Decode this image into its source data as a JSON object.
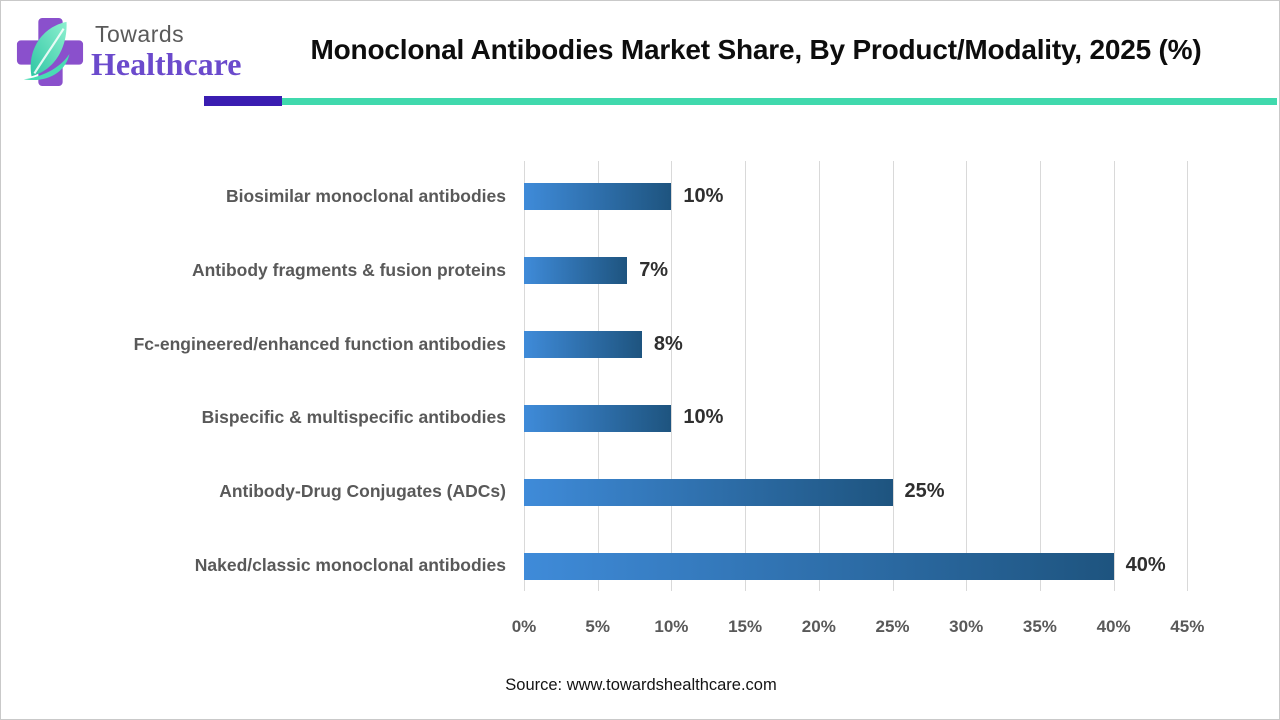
{
  "header": {
    "logo_top": "Towards",
    "logo_bottom": "Healthcare",
    "title": "Monoclonal Antibodies Market Share, By Product/Modality, 2025 (%)"
  },
  "colors": {
    "divider_purple": "#3a1db1",
    "divider_teal": "#40d9ad",
    "bar_gradient_start": "#3f8bd9",
    "bar_gradient_end": "#1e547f",
    "gridline": "#d9d9d9",
    "category_label": "#595959",
    "value_label": "#2f2f2f",
    "axis_label": "#595959",
    "logo_purple": "#8a50cc",
    "logo_teal": "#2fd0a8"
  },
  "chart_data": {
    "type": "bar",
    "orientation": "horizontal",
    "title": "Monoclonal Antibodies Market Share, By Product/Modality, 2025 (%)",
    "categories": [
      "Biosimilar monoclonal antibodies",
      "Antibody fragments & fusion proteins",
      "Fc-engineered/enhanced function antibodies",
      "Bispecific & multispecific antibodies",
      "Antibody-Drug Conjugates (ADCs)",
      "Naked/classic monoclonal antibodies"
    ],
    "values": [
      10,
      7,
      8,
      10,
      25,
      40
    ],
    "value_labels": [
      "10%",
      "7%",
      "8%",
      "10%",
      "25%",
      "40%"
    ],
    "x_tick_labels": [
      "0%",
      "5%",
      "10%",
      "15%",
      "20%",
      "25%",
      "30%",
      "35%",
      "40%",
      "45%"
    ],
    "x_tick_values": [
      0,
      5,
      10,
      15,
      20,
      25,
      30,
      35,
      40,
      45
    ],
    "xlim": [
      0,
      45
    ],
    "grid": true,
    "legend": false,
    "xlabel": "",
    "ylabel": ""
  },
  "footer": {
    "source": "Source: www.towardshealthcare.com"
  }
}
